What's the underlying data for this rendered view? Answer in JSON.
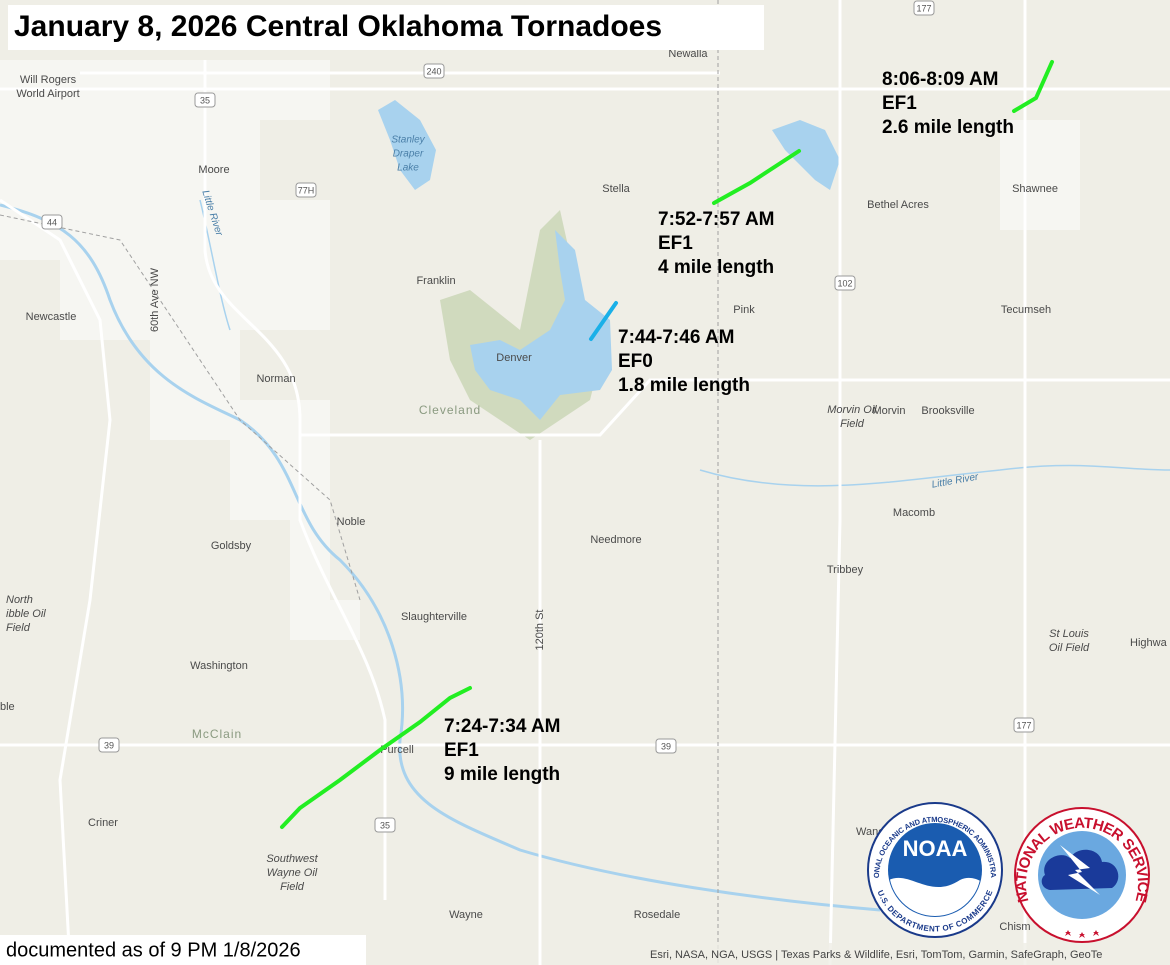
{
  "title": "January 8, 2026 Central Oklahoma Tornadoes",
  "footer": "documented as of 9 PM 1/8/2026",
  "attribution": "Esri, NASA, NGA, USGS | Texas Parks & Wildlife, Esri, TomTom, Garmin, SafeGraph, GeoTe",
  "tornadoes": [
    {
      "time": "7:24-7:34 AM",
      "rating": "EF1",
      "length": "9 mile length",
      "color": "#22ee22"
    },
    {
      "time": "7:44-7:46 AM",
      "rating": "EF0",
      "length": "1.8 mile length",
      "color": "#1ab0e8"
    },
    {
      "time": "7:52-7:57 AM",
      "rating": "EF1",
      "length": "4 mile length",
      "color": "#22ee22"
    },
    {
      "time": "8:06-8:09 AM",
      "rating": "EF1",
      "length": "2.6 mile length",
      "color": "#22ee22"
    }
  ],
  "places": [
    [
      "Will Rogers",
      "World Airport"
    ],
    "Newalla",
    "Moore",
    [
      "Stanley",
      "Draper",
      "Lake"
    ],
    "Stella",
    "Bethel Acres",
    "Shawnee",
    "Franklin",
    "Newcastle",
    "60th Ave NW",
    "Little River",
    "Denver",
    "Pink",
    "Tecumseh",
    "Norman",
    "Cleveland",
    [
      "Morvin Oil",
      "Field"
    ],
    "Morvin",
    "Brooksville",
    "Little River",
    "Macomb",
    "Noble",
    "Goldsby",
    "Needmore",
    "Tribbey",
    [
      "North",
      "ibble Oil",
      "Field"
    ],
    "Slaughterville",
    "120th St",
    [
      "St Louis",
      "Oil Field"
    ],
    "Highwa",
    "Washington",
    "ble",
    "McClain",
    "Purcell",
    "Criner",
    [
      "Southwest",
      "Wayne Oil",
      "Field"
    ],
    "Wayne",
    "Rosedale",
    "Wane",
    "Chism"
  ],
  "road_shields": [
    "35",
    "240",
    "177",
    "77H",
    "44",
    "102",
    "39",
    "39",
    "35",
    "177"
  ],
  "logos": {
    "noaa_center": "NOAA",
    "noaa_top": "NATIONAL OCEANIC AND ATMOSPHERIC ADMINISTRATION",
    "noaa_bottom": "U.S. DEPARTMENT OF COMMERCE",
    "nws": "NATIONAL WEATHER SERVICE"
  }
}
